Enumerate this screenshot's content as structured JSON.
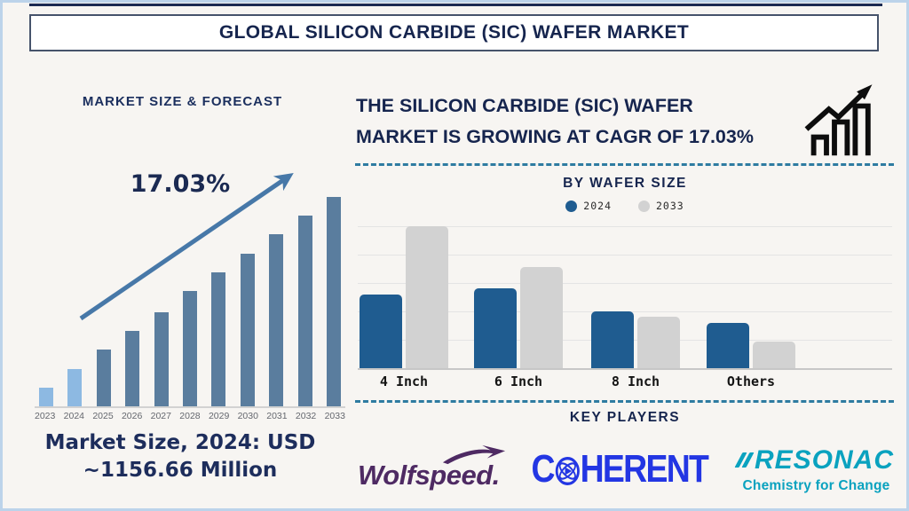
{
  "page": {
    "title": "GLOBAL SILICON CARBIDE (SIC) WAFER MARKET"
  },
  "forecast_section": {
    "heading": "MARKET SIZE & FORECAST",
    "cagr_annotation": "17.03%",
    "caption_line1": "Market Size, 2024: USD",
    "caption_line2": "~1156.66 Million"
  },
  "growth_section": {
    "headline_line1": "THE SILICON CARBIDE (SIC) WAFER",
    "headline_line2": "MARKET IS GROWING AT CAGR OF 17.03%"
  },
  "wafer_section": {
    "heading": "BY WAFER SIZE"
  },
  "key_players_section": {
    "heading": "KEY PLAYERS",
    "players": [
      {
        "name": "Wolfspeed.",
        "color": "#4e2a63"
      },
      {
        "name": "COHERENT",
        "display_prefix": "C",
        "display_suffix": "HERENT",
        "color": "#2336e3"
      },
      {
        "name": "RESONAC",
        "tagline": "Chemistry for Change",
        "color": "#0aa2bf"
      }
    ]
  },
  "chart_data": [
    {
      "type": "bar",
      "title": "MARKET SIZE & FORECAST",
      "categories": [
        "2023",
        "2024",
        "2025",
        "2026",
        "2027",
        "2028",
        "2029",
        "2030",
        "2031",
        "2032",
        "2033"
      ],
      "values": [
        9,
        18,
        27,
        36,
        45,
        55,
        64,
        73,
        82,
        91,
        100
      ],
      "unit": "relative bar height, % of 2033 bar (illustrative forecast ramp)",
      "highlight_categories": [
        "2023",
        "2024"
      ],
      "bar_color_highlight": "#8db9e2",
      "bar_color_default": "#5a7d9e",
      "annotation": "17.03%",
      "note": "Market Size, 2024: USD ~1156.66 Million",
      "xlabel": "",
      "ylabel": "",
      "ylim": [
        0,
        100
      ],
      "grid": false,
      "legend_position": "none"
    },
    {
      "type": "bar",
      "title": "BY WAFER SIZE",
      "categories": [
        "4 Inch",
        "6 Inch",
        "8 Inch",
        "Others"
      ],
      "series": [
        {
          "name": "2024",
          "color": "#1f5c90",
          "values": [
            52,
            56,
            40,
            32
          ]
        },
        {
          "name": "2033",
          "color": "#d2d2d2",
          "values": [
            100,
            71,
            36,
            19
          ]
        }
      ],
      "unit": "relative bar height, % of tallest bar (no numeric axis shown)",
      "xlabel": "",
      "ylabel": "",
      "ylim": [
        0,
        100
      ],
      "grid": true,
      "legend_position": "top"
    }
  ],
  "colors": {
    "navy_text": "#16254e",
    "frame_border": "#bcd3ea",
    "top_rule": "#1b2a52",
    "dashed_divider": "#2e7ba1",
    "axis_line": "#c7c7c7",
    "gridline": "#e4e4e4",
    "year_label": "#64676e",
    "trend_arrow": "#4778a8",
    "icon_black": "#0d0d0d",
    "background": "#f7f5f2"
  }
}
